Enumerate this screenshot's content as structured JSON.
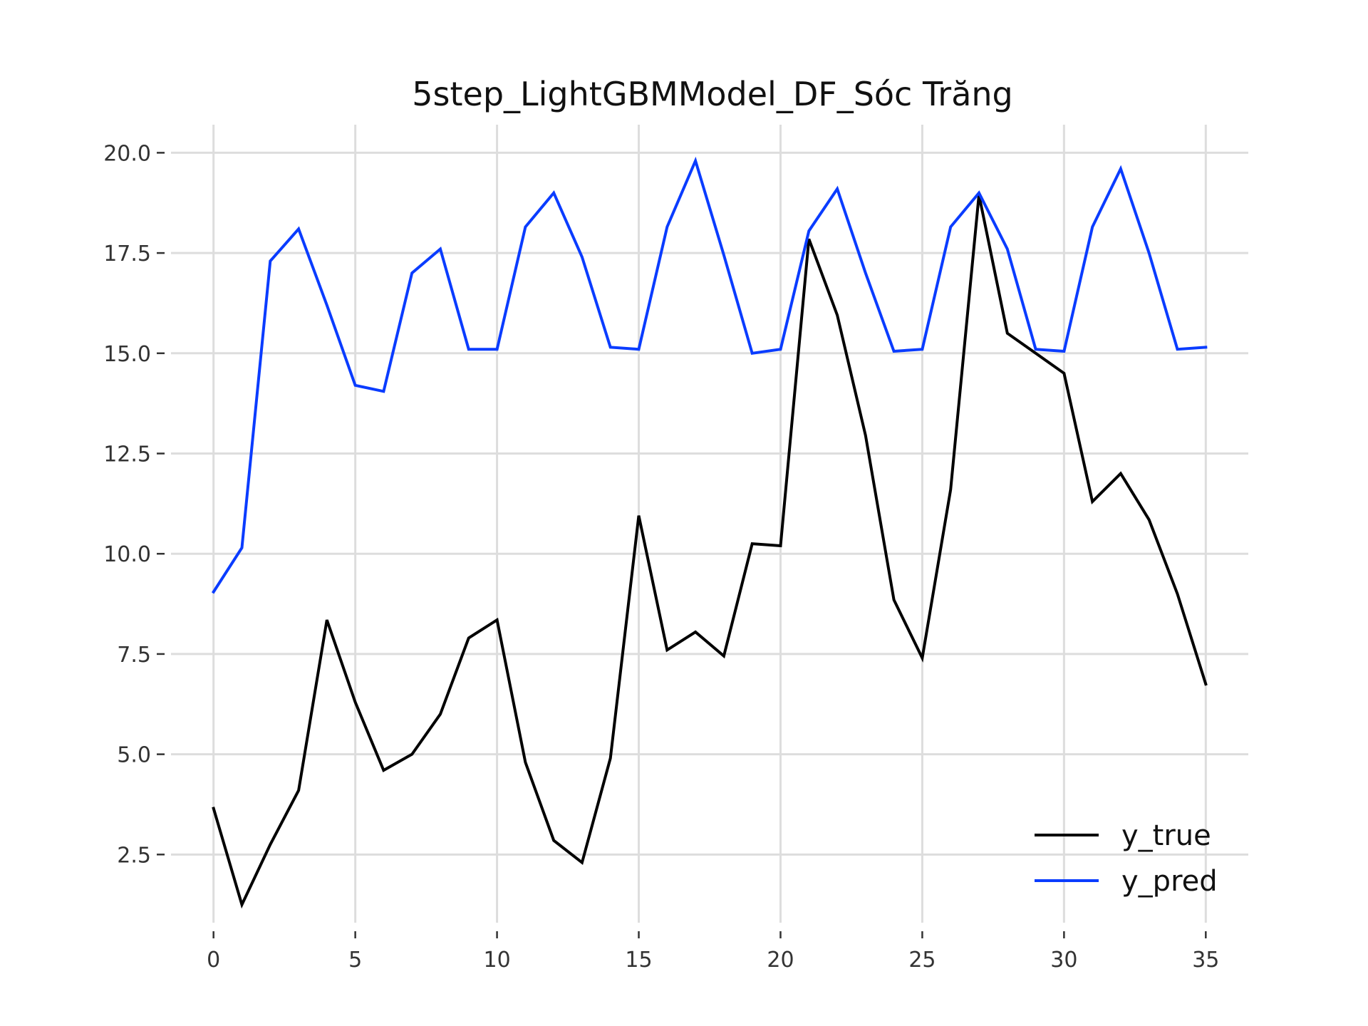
{
  "chart_data": {
    "type": "line",
    "title": "5step_LightGBMModel_DF_Sóc Trăng",
    "xlabel": "",
    "ylabel": "",
    "xlim": [
      -1.5,
      36.5
    ],
    "ylim": [
      0.8,
      20.7
    ],
    "x_ticks": [
      0,
      5,
      10,
      15,
      20,
      25,
      30,
      35
    ],
    "x_tick_labels": [
      "0",
      "5",
      "10",
      "15",
      "20",
      "25",
      "30",
      "35"
    ],
    "y_ticks": [
      2.5,
      5.0,
      7.5,
      10.0,
      12.5,
      15.0,
      17.5,
      20.0
    ],
    "y_tick_labels": [
      "2.5",
      "5.0",
      "7.5",
      "10.0",
      "12.5",
      "15.0",
      "17.5",
      "20.0"
    ],
    "grid": true,
    "legend_position": "bottom-right",
    "x": [
      0,
      1,
      2,
      3,
      4,
      5,
      6,
      7,
      8,
      9,
      10,
      11,
      12,
      13,
      14,
      15,
      16,
      17,
      18,
      19,
      20,
      21,
      22,
      23,
      24,
      25,
      26,
      27,
      28,
      29,
      30,
      31,
      32,
      33,
      34,
      35
    ],
    "series": [
      {
        "name": "y_true",
        "color": "#000000",
        "values": [
          3.65,
          1.25,
          2.75,
          4.1,
          8.35,
          6.3,
          4.6,
          5.0,
          6.0,
          7.9,
          8.35,
          4.8,
          2.85,
          2.3,
          4.9,
          10.95,
          7.6,
          8.05,
          7.45,
          10.25,
          10.2,
          17.85,
          15.95,
          12.95,
          8.85,
          7.4,
          11.6,
          18.95,
          15.5,
          15.0,
          14.5,
          11.3,
          12.0,
          10.85,
          9.0,
          6.75
        ]
      },
      {
        "name": "y_pred",
        "color": "#0a3cff",
        "values": [
          9.05,
          10.15,
          17.3,
          18.1,
          16.2,
          14.2,
          14.05,
          17.0,
          17.6,
          15.1,
          15.1,
          18.15,
          19.0,
          17.4,
          15.15,
          15.1,
          18.15,
          19.8,
          17.45,
          15.0,
          15.1,
          18.05,
          19.1,
          17.0,
          15.05,
          15.1,
          18.15,
          19.0,
          17.6,
          15.1,
          15.05,
          18.15,
          19.6,
          17.5,
          15.1,
          15.15
        ]
      }
    ]
  }
}
